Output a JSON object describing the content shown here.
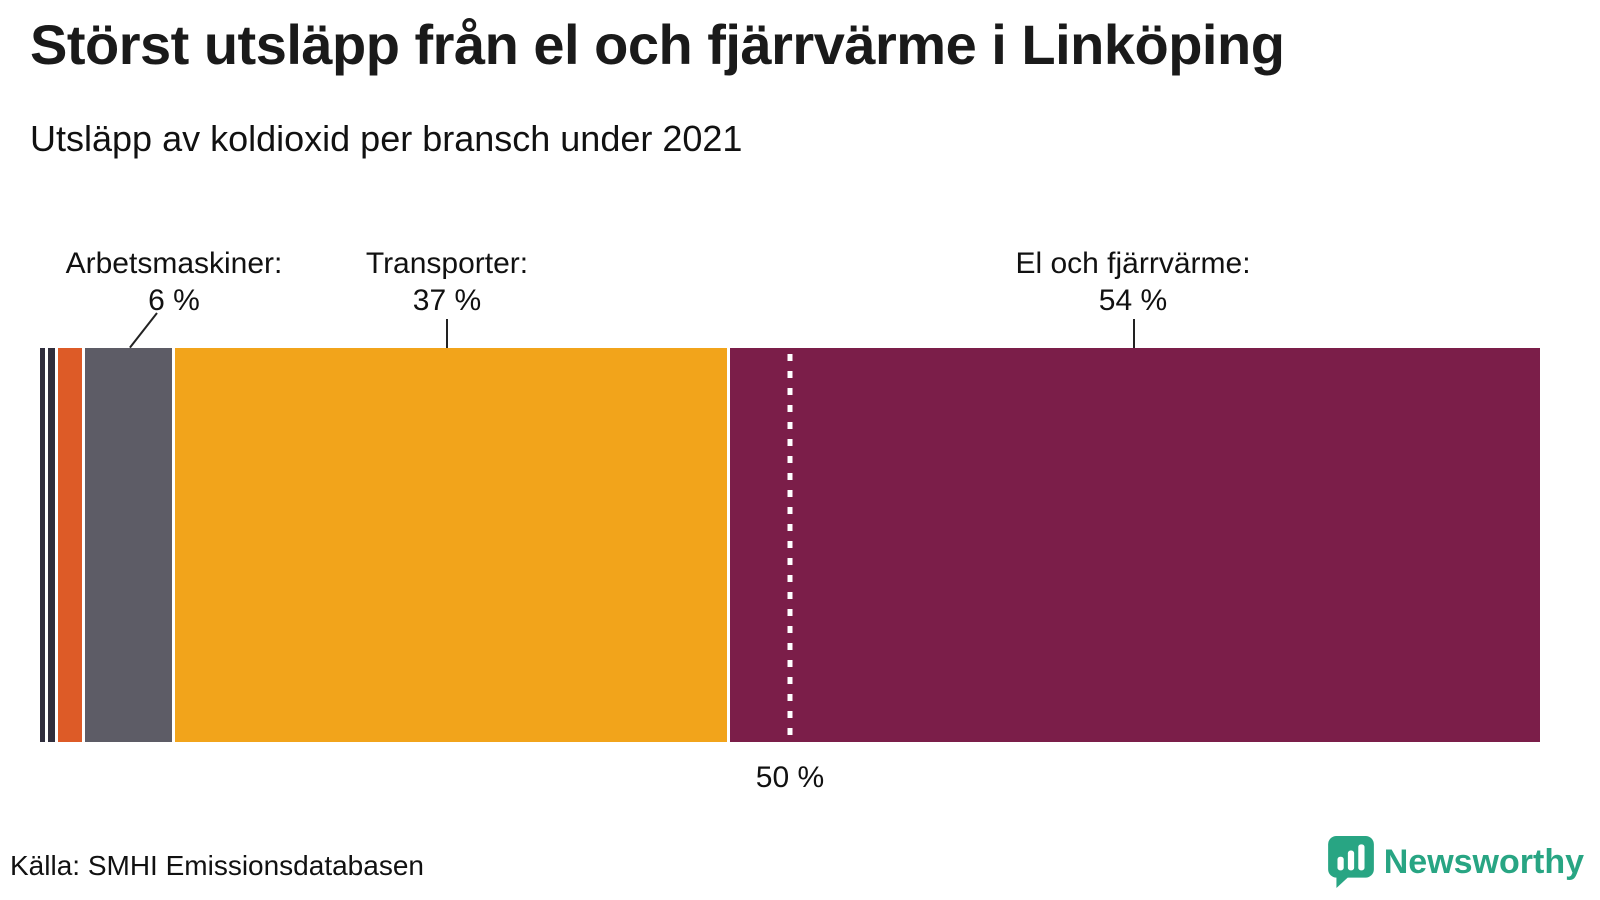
{
  "header": {
    "title": "Störst utsläpp från el och fjärrvärme i Linköping",
    "subtitle": "Utsläpp av koldioxid per bransch under 2021"
  },
  "chart_data": {
    "type": "bar",
    "stacked": true,
    "orientation": "horizontal",
    "title": "Störst utsläpp från el och fjärrvärme i Linköping",
    "subtitle": "Utsläpp av koldioxid per bransch under 2021",
    "unit": "%",
    "xlim": [
      0,
      100
    ],
    "segments": [
      {
        "label": "",
        "value": 0.5,
        "color": "#302e3c"
      },
      {
        "label": "",
        "value": 0.7,
        "color": "#302e3c"
      },
      {
        "label": "",
        "value": 1.8,
        "color": "#dd5b27"
      },
      {
        "label": "Arbetsmaskiner",
        "value": 6,
        "color": "#5d5c66"
      },
      {
        "label": "Transporter",
        "value": 37,
        "color": "#f2a41b"
      },
      {
        "label": "El och fjärrvärme",
        "value": 54,
        "color": "#7b1e49"
      }
    ],
    "annotations": [
      {
        "label": "Arbetsmaskiner:",
        "value": "6 %"
      },
      {
        "label": "Transporter:",
        "value": "37 %"
      },
      {
        "label": "El och fjärrvärme:",
        "value": "54 %"
      }
    ],
    "reference_line": {
      "value": 50,
      "label": "50 %"
    }
  },
  "footer": {
    "source": "Källa: SMHI Emissionsdatabasen",
    "brand": "Newsworthy",
    "brand_color": "#28a583"
  }
}
